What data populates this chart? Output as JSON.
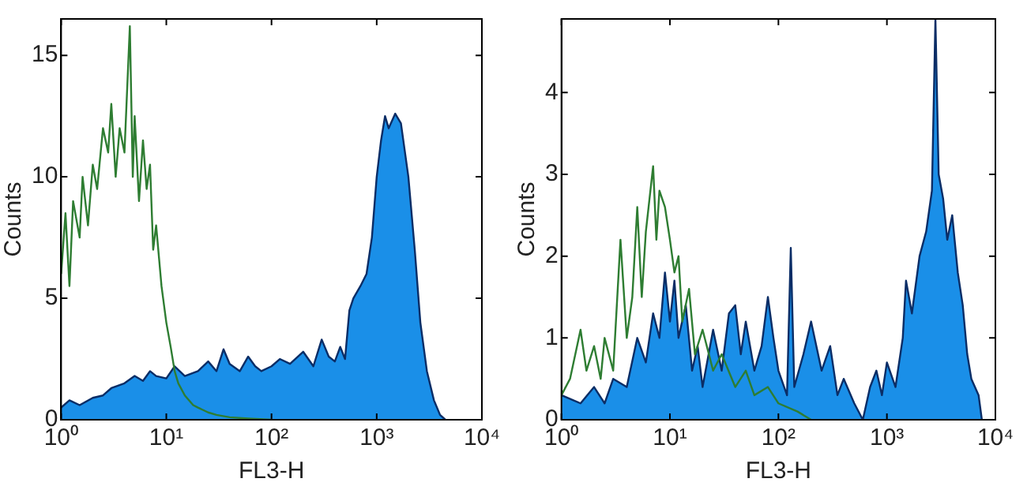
{
  "chart_data": [
    {
      "type": "line",
      "xlabel": "FL3-H",
      "ylabel": "Counts",
      "log": "x",
      "grid": false,
      "legend": false,
      "marker": "none",
      "xlim": [
        1,
        10000
      ],
      "xticks": [
        {
          "value": 1,
          "label": "10⁰"
        },
        {
          "value": 10,
          "label": "10¹"
        },
        {
          "value": 100,
          "label": "10²"
        },
        {
          "value": 1000,
          "label": "10³"
        },
        {
          "value": 10000,
          "label": "10⁴"
        }
      ],
      "ylim": [
        0,
        16.5
      ],
      "yticks": [
        0,
        5,
        10,
        15
      ],
      "series": [
        {
          "type": "area",
          "color": "#1a8fe8",
          "x": [
            1,
            1.2,
            1.5,
            2,
            2.5,
            3,
            4,
            5,
            6,
            7,
            8,
            10,
            12,
            15,
            20,
            25,
            30,
            35,
            40,
            50,
            60,
            70,
            80,
            100,
            120,
            150,
            200,
            250,
            300,
            350,
            400,
            450,
            500,
            550,
            600,
            700,
            800,
            900,
            1000,
            1100,
            1200,
            1300,
            1500,
            1700,
            2000,
            2300,
            2600,
            3000,
            3500,
            4000,
            4500
          ],
          "values": [
            0.5,
            0.8,
            0.6,
            0.9,
            1.0,
            1.3,
            1.5,
            1.8,
            1.6,
            2.0,
            1.8,
            1.7,
            2.2,
            1.8,
            2.0,
            2.4,
            2.0,
            2.9,
            2.3,
            2.0,
            2.6,
            2.2,
            2.0,
            2.2,
            2.5,
            2.3,
            2.8,
            2.2,
            3.3,
            2.6,
            2.4,
            3.0,
            2.5,
            4.5,
            5.0,
            5.5,
            6.0,
            7.5,
            10.0,
            11.5,
            12.5,
            12.0,
            12.6,
            12.2,
            10.0,
            7.0,
            4.0,
            2.0,
            0.8,
            0.2,
            0
          ]
        },
        {
          "type": "line",
          "color": "#2e7d32",
          "x": [
            1,
            1.1,
            1.2,
            1.3,
            1.5,
            1.6,
            1.8,
            2,
            2.2,
            2.5,
            2.8,
            3,
            3.3,
            3.6,
            4,
            4.5,
            4.8,
            5,
            5.5,
            6,
            6.5,
            7,
            7.5,
            8,
            9,
            10,
            11,
            12,
            13,
            15,
            18,
            20,
            25,
            30,
            40,
            60,
            100
          ],
          "values": [
            6,
            8.5,
            5.5,
            9,
            7.5,
            10,
            8,
            10.5,
            9.5,
            12,
            11,
            13,
            10,
            12,
            11,
            16.2,
            10,
            12.5,
            9,
            11.5,
            9.5,
            10.5,
            7,
            8,
            5.5,
            4,
            3,
            2,
            1.5,
            1,
            0.6,
            0.5,
            0.3,
            0.2,
            0.1,
            0.05,
            0
          ]
        }
      ]
    },
    {
      "type": "line",
      "xlabel": "FL3-H",
      "ylabel": "Counts",
      "log": "x",
      "grid": false,
      "legend": false,
      "marker": "none",
      "xlim": [
        1,
        10000
      ],
      "xticks": [
        {
          "value": 1,
          "label": "10⁰"
        },
        {
          "value": 10,
          "label": "10¹"
        },
        {
          "value": 100,
          "label": "10²"
        },
        {
          "value": 1000,
          "label": "10³"
        },
        {
          "value": 10000,
          "label": "10⁴"
        }
      ],
      "ylim": [
        0,
        4.9
      ],
      "yticks": [
        0,
        1,
        2,
        3,
        4
      ],
      "series": [
        {
          "type": "area",
          "color": "#1a8fe8",
          "x": [
            1,
            1.5,
            2,
            2.5,
            3,
            4,
            5,
            6,
            7,
            8,
            9,
            10,
            11,
            12,
            14,
            16,
            18,
            20,
            25,
            30,
            35,
            40,
            45,
            50,
            60,
            70,
            80,
            90,
            100,
            120,
            130,
            140,
            170,
            200,
            250,
            300,
            350,
            400,
            500,
            600,
            700,
            800,
            900,
            1000,
            1200,
            1400,
            1500,
            1700,
            2000,
            2300,
            2600,
            2800,
            3000,
            3300,
            3600,
            4000,
            4500,
            5000,
            5500,
            6000,
            7000,
            7500
          ],
          "values": [
            0.3,
            0.2,
            0.4,
            0.2,
            0.5,
            0.4,
            1.0,
            0.7,
            1.3,
            1.0,
            1.8,
            1.2,
            1.7,
            1.0,
            1.4,
            0.6,
            0.9,
            0.4,
            1.1,
            0.6,
            1.3,
            1.4,
            0.8,
            1.2,
            0.6,
            0.9,
            1.5,
            1.0,
            0.6,
            0.3,
            2.1,
            0.4,
            0.8,
            1.2,
            0.6,
            0.9,
            0.3,
            0.5,
            0.2,
            0,
            0.4,
            0.6,
            0.3,
            0.7,
            0.4,
            1.0,
            1.7,
            1.3,
            2.0,
            2.3,
            2.8,
            4.9,
            3.0,
            2.7,
            2.2,
            2.5,
            1.8,
            1.4,
            0.8,
            0.5,
            0.3,
            0
          ]
        },
        {
          "type": "line",
          "color": "#2e7d32",
          "x": [
            1,
            1.2,
            1.5,
            1.7,
            2,
            2.3,
            2.5,
            3,
            3.5,
            4,
            4.5,
            5,
            5.5,
            6,
            7,
            7.5,
            8,
            9,
            10,
            11,
            12,
            13,
            15,
            17,
            20,
            25,
            30,
            40,
            50,
            60,
            80,
            100,
            150,
            200
          ],
          "values": [
            0.3,
            0.5,
            1.1,
            0.6,
            0.9,
            0.5,
            1.0,
            0.6,
            2.2,
            1.0,
            1.5,
            2.6,
            1.5,
            2.3,
            3.1,
            2.2,
            2.8,
            2.6,
            2.2,
            1.8,
            2.0,
            1.2,
            1.6,
            0.8,
            1.1,
            0.6,
            0.8,
            0.4,
            0.6,
            0.3,
            0.4,
            0.2,
            0.1,
            0
          ]
        }
      ]
    }
  ]
}
